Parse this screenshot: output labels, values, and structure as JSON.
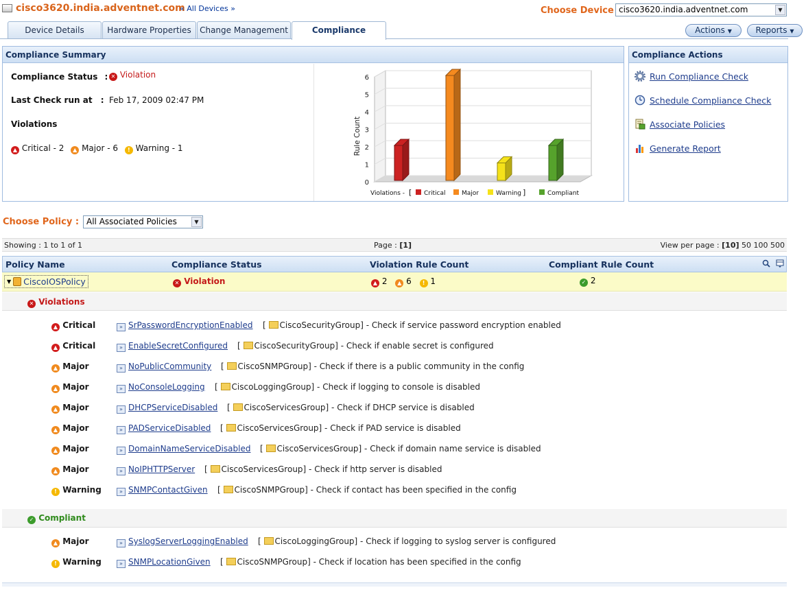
{
  "header": {
    "device_title": "cisco3620.india.adventnet.com",
    "all_devices": "All Devices",
    "choose_device_label": "Choose Device :",
    "selected_device": "cisco3620.india.adventnet.com"
  },
  "tabs": [
    "Device Details",
    "Hardware Properties",
    "Change Management",
    "Compliance"
  ],
  "active_tab": "Compliance",
  "buttons": {
    "actions": "Actions",
    "reports": "Reports"
  },
  "summary": {
    "title": "Compliance Summary",
    "status_label": "Compliance Status",
    "status_value": "Violation",
    "last_check_label": "Last Check run at",
    "last_check_value": "Feb 17, 2009 02:47 PM",
    "violations_label": "Violations",
    "critical": "Critical - 2",
    "major": "Major - 6",
    "warning": "Warning - 1"
  },
  "chart_data": {
    "type": "bar",
    "categories": [
      "Critical",
      "Major",
      "Warning",
      "Compliant"
    ],
    "values": [
      2,
      6,
      1,
      2
    ],
    "colors": [
      "#cc2222",
      "#f58a1f",
      "#f5e21a",
      "#56a22c"
    ],
    "ylabel": "Rule Count",
    "ylim": [
      0,
      6
    ],
    "yticks": [
      "0",
      "1",
      "2",
      "3",
      "4",
      "5",
      "6"
    ],
    "legend_prefix": "Violations -",
    "legend": [
      "Critical",
      "Major",
      "Warning",
      "Compliant"
    ]
  },
  "actions_panel": {
    "title": "Compliance Actions",
    "items": [
      "Run Compliance Check",
      "Schedule Compliance Check",
      "Associate Policies",
      "Generate Report"
    ]
  },
  "policy": {
    "choose_label": "Choose Policy :",
    "selected": "All Associated Policies",
    "showing": "Showing : 1 to 1 of 1",
    "page_label": "Page :",
    "page_value": "[1]",
    "view_per_page_label": "View per page :",
    "view_per_page_current": "[10]",
    "view_per_page_options": "50 100 500"
  },
  "table": {
    "headers": [
      "Policy Name",
      "Compliance Status",
      "Violation Rule Count",
      "Compliant Rule Count"
    ],
    "row": {
      "name": "CiscoIOSPolicy",
      "status": "Violation",
      "critical_count": "2",
      "major_count": "6",
      "warning_count": "1",
      "compliant_count": "2"
    }
  },
  "violations_section": "Violations",
  "compliant_section": "Compliant",
  "violation_rules": [
    {
      "severity": "Critical",
      "rule": "SrPasswordEncryptionEnabled",
      "group": "CiscoSecurityGroup",
      "desc": "] - Check if service password encryption enabled"
    },
    {
      "severity": "Critical",
      "rule": "EnableSecretConfigured",
      "group": "CiscoSecurityGroup",
      "desc": "] - Check if enable secret is configured"
    },
    {
      "severity": "Major",
      "rule": "NoPublicCommunity",
      "group": "CiscoSNMPGroup",
      "desc": "] - Check if there is a public community in the config"
    },
    {
      "severity": "Major",
      "rule": "NoConsoleLogging",
      "group": "CiscoLoggingGroup",
      "desc": "] - Check if logging to console is disabled"
    },
    {
      "severity": "Major",
      "rule": "DHCPServiceDisabled",
      "group": "CiscoServicesGroup",
      "desc": "] - Check if DHCP service is disabled"
    },
    {
      "severity": "Major",
      "rule": "PADServiceDisabled",
      "group": "CiscoServicesGroup",
      "desc": "] - Check if PAD service is disabled"
    },
    {
      "severity": "Major",
      "rule": "DomainNameServiceDisabled",
      "group": "CiscoServicesGroup",
      "desc": "] - Check if domain name service is disabled"
    },
    {
      "severity": "Major",
      "rule": "NoIPHTTPServer",
      "group": "CiscoServicesGroup",
      "desc": "] - Check if http server is disabled"
    },
    {
      "severity": "Warning",
      "rule": "SNMPContactGiven",
      "group": "CiscoSNMPGroup",
      "desc": "] - Check if contact has been specified in the config"
    }
  ],
  "compliant_rules": [
    {
      "severity": "Major",
      "rule": "SyslogServerLoggingEnabled",
      "group": "CiscoLoggingGroup",
      "desc": "] - Check if logging to syslog server is configured"
    },
    {
      "severity": "Warning",
      "rule": "SNMPLocationGiven",
      "group": "CiscoSNMPGroup",
      "desc": "] - Check if location has been specified in the config"
    }
  ]
}
